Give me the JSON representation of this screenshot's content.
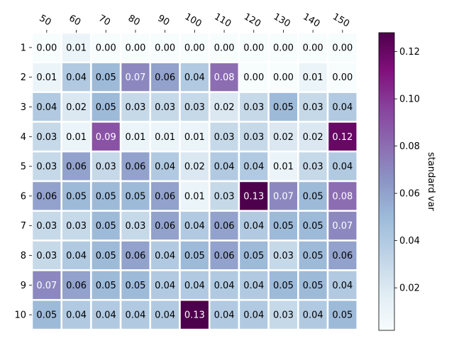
{
  "chart_data": {
    "type": "heatmap",
    "title": "",
    "xlabel": "",
    "ylabel": "",
    "x_categories": [
      "50",
      "60",
      "70",
      "80",
      "90",
      "100",
      "110",
      "120",
      "130",
      "140",
      "150"
    ],
    "y_categories": [
      "1",
      "2",
      "3",
      "4",
      "5",
      "6",
      "7",
      "8",
      "9",
      "10"
    ],
    "values": [
      [
        0.0,
        0.01,
        0.0,
        0.0,
        0.0,
        0.0,
        0.0,
        0.0,
        0.0,
        0.0,
        0.0
      ],
      [
        0.01,
        0.04,
        0.05,
        0.07,
        0.06,
        0.04,
        0.08,
        0.0,
        0.0,
        0.01,
        0.0
      ],
      [
        0.04,
        0.02,
        0.05,
        0.03,
        0.03,
        0.03,
        0.02,
        0.03,
        0.05,
        0.03,
        0.04
      ],
      [
        0.03,
        0.01,
        0.09,
        0.01,
        0.01,
        0.01,
        0.03,
        0.03,
        0.02,
        0.02,
        0.12
      ],
      [
        0.03,
        0.06,
        0.03,
        0.06,
        0.04,
        0.02,
        0.04,
        0.04,
        0.01,
        0.03,
        0.04
      ],
      [
        0.06,
        0.05,
        0.05,
        0.05,
        0.06,
        0.01,
        0.03,
        0.13,
        0.07,
        0.05,
        0.08
      ],
      [
        0.03,
        0.03,
        0.05,
        0.03,
        0.06,
        0.04,
        0.06,
        0.04,
        0.05,
        0.05,
        0.07
      ],
      [
        0.03,
        0.04,
        0.05,
        0.06,
        0.04,
        0.05,
        0.06,
        0.05,
        0.03,
        0.05,
        0.06
      ],
      [
        0.07,
        0.06,
        0.05,
        0.05,
        0.04,
        0.04,
        0.04,
        0.04,
        0.05,
        0.05,
        0.04
      ],
      [
        0.05,
        0.04,
        0.04,
        0.04,
        0.04,
        0.13,
        0.04,
        0.04,
        0.03,
        0.04,
        0.05
      ]
    ],
    "value_format": "0.00",
    "colormap": "BuPu",
    "colorbar": {
      "label": "standard var",
      "range": [
        0.002,
        0.128
      ],
      "ticks": [
        "0.02",
        "0.04",
        "0.06",
        "0.08",
        "0.10",
        "0.12"
      ]
    },
    "x_tick_position": "top",
    "grid": false
  }
}
